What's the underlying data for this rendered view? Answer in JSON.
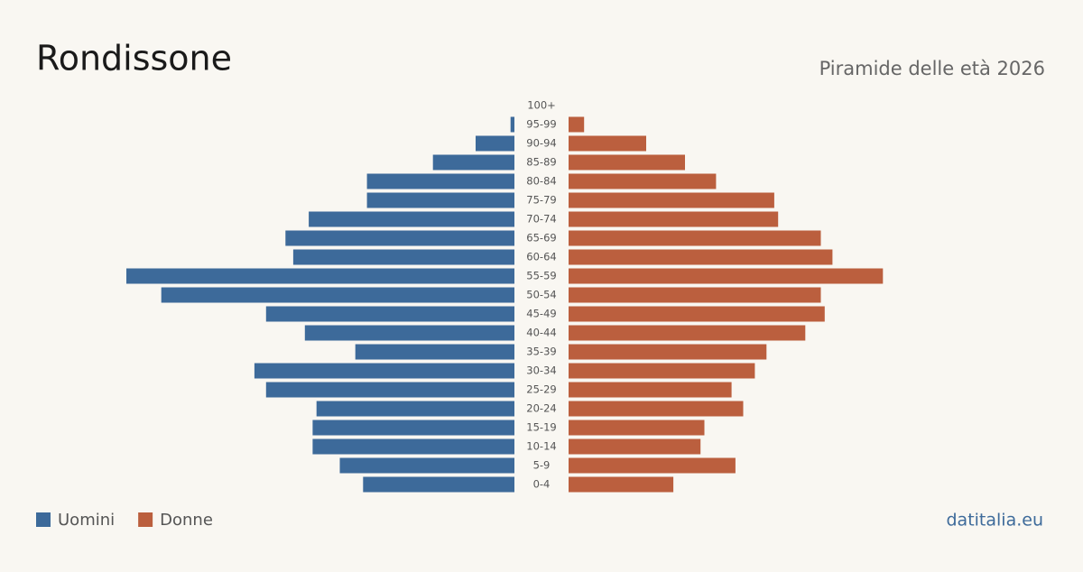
{
  "chart_data": {
    "type": "pyramid",
    "title": "Rondissone",
    "subtitle": "Piramide delle età 2026",
    "source": "datitalia.eu",
    "categories": [
      "100+",
      "95-99",
      "90-94",
      "85-89",
      "80-84",
      "75-79",
      "70-74",
      "65-69",
      "60-64",
      "55-59",
      "50-54",
      "45-49",
      "40-44",
      "35-39",
      "30-34",
      "25-29",
      "20-24",
      "15-19",
      "10-14",
      "5-9",
      "0-4"
    ],
    "series": [
      {
        "name": "Uomini",
        "color": "#3d6a9a",
        "values": [
          0,
          1,
          10,
          21,
          38,
          38,
          53,
          59,
          57,
          100,
          91,
          64,
          54,
          41,
          67,
          64,
          51,
          52,
          52,
          45,
          39
        ]
      },
      {
        "name": "Donne",
        "color": "#bb5f3e",
        "values": [
          0,
          4,
          20,
          30,
          38,
          53,
          54,
          65,
          68,
          81,
          65,
          66,
          61,
          51,
          48,
          42,
          45,
          35,
          34,
          43,
          27
        ]
      }
    ]
  }
}
